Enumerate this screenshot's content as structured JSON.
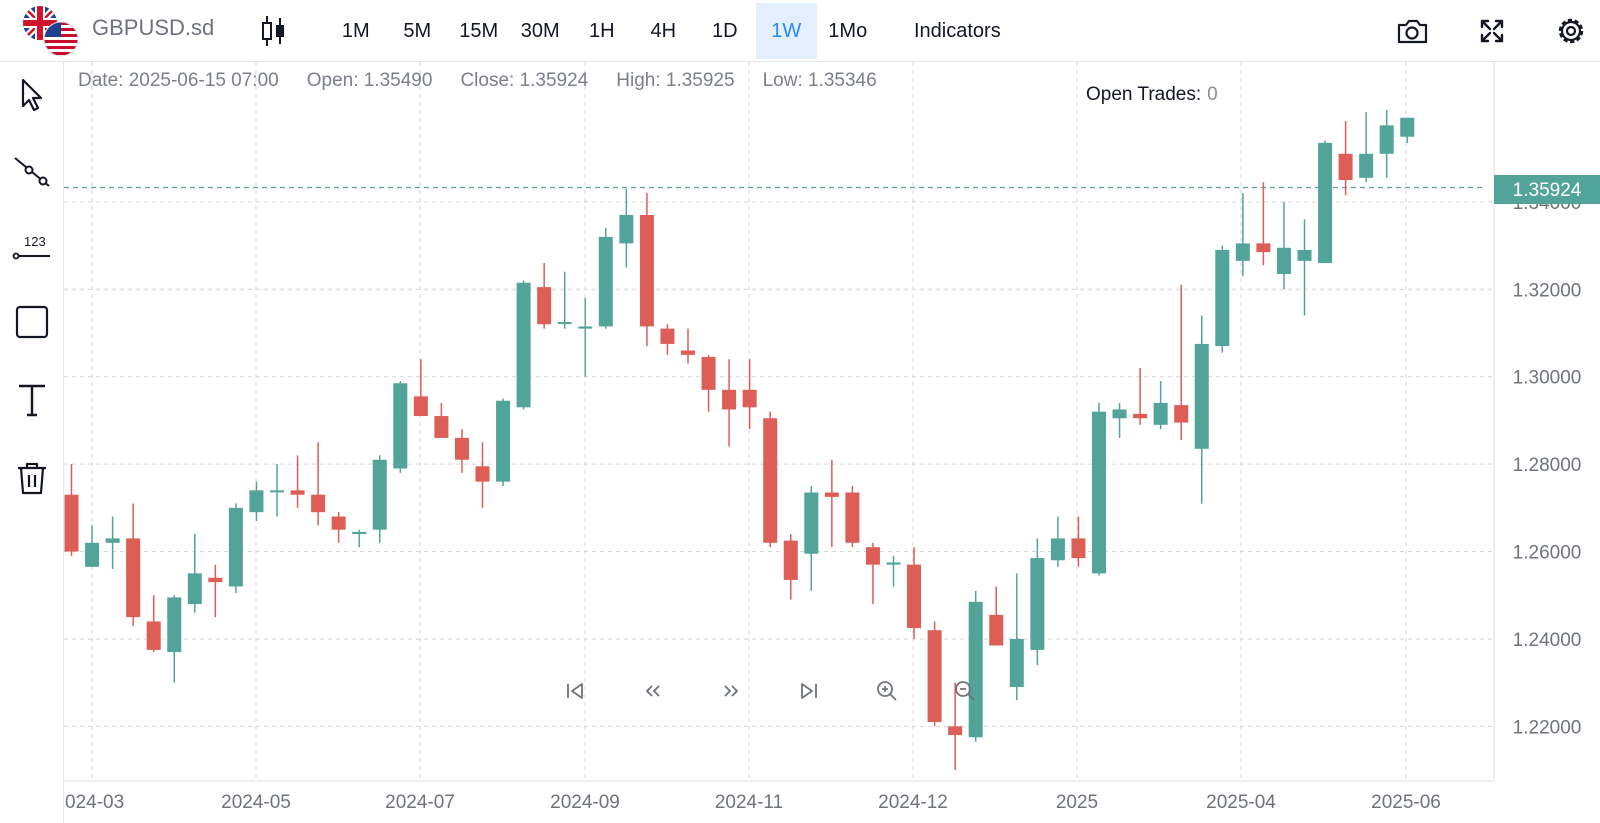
{
  "header": {
    "symbol": "GBPUSD.sd",
    "intervals": [
      "1M",
      "5M",
      "15M",
      "30M",
      "1H",
      "4H",
      "1D",
      "1W",
      "1Mo"
    ],
    "active_interval": "1W",
    "indicators_label": "Indicators",
    "icons": [
      "flag-gb-icon",
      "flag-us-icon",
      "candlestick-type-icon",
      "camera-icon",
      "fullscreen-icon",
      "settings-gear-icon"
    ]
  },
  "left_toolbar": {
    "tools": [
      "cursor-arrow-icon",
      "trend-line-icon",
      "price-label-icon",
      "rectangle-icon",
      "text-icon",
      "trash-icon"
    ]
  },
  "legend": {
    "date": "Date: 2025-06-15 07:00",
    "open": "Open: 1.35490",
    "close": "Close: 1.35924",
    "high": "High: 1.35925",
    "low": "Low: 1.35346"
  },
  "open_trades": {
    "label": "Open Trades:",
    "value": "0"
  },
  "navigation": [
    "first-page-icon",
    "scroll-left-icon",
    "scroll-right-icon",
    "last-page-icon",
    "zoom-in-icon",
    "zoom-out-icon"
  ],
  "colors": {
    "up": "#52a49a",
    "down": "#dd5e56",
    "grid": "#d6d6d6",
    "price_line": "#52a49a"
  },
  "chart_data": {
    "type": "candlestick",
    "interval": "1W",
    "x_tick_labels": [
      "024-03",
      "2024-05",
      "2024-07",
      "2024-09",
      "2024-11",
      "2024-12",
      "2025",
      "2025-04",
      "2025-06"
    ],
    "y_tick_labels": [
      "1.34000",
      "1.32000",
      "1.30000",
      "1.28000",
      "1.26000",
      "1.24000",
      "1.22000"
    ],
    "ylim": [
      1.2075,
      1.372
    ],
    "last_price": "1.35924",
    "grid": true,
    "candles": [
      [
        1.273,
        1.28,
        1.259,
        1.26
      ],
      [
        1.2565,
        1.266,
        1.2565,
        1.262
      ],
      [
        1.262,
        1.268,
        1.256,
        1.263
      ],
      [
        1.263,
        1.271,
        1.243,
        1.245
      ],
      [
        1.244,
        1.25,
        1.237,
        1.2375
      ],
      [
        1.237,
        1.25,
        1.23,
        1.2495
      ],
      [
        1.248,
        1.264,
        1.246,
        1.255
      ],
      [
        1.254,
        1.257,
        1.245,
        1.253
      ],
      [
        1.252,
        1.271,
        1.2505,
        1.27
      ],
      [
        1.269,
        1.276,
        1.267,
        1.274
      ],
      [
        1.274,
        1.28,
        1.268,
        1.274
      ],
      [
        1.274,
        1.282,
        1.27,
        1.273
      ],
      [
        1.273,
        1.285,
        1.266,
        1.269
      ],
      [
        1.268,
        1.269,
        1.262,
        1.265
      ],
      [
        1.264,
        1.265,
        1.261,
        1.2645
      ],
      [
        1.265,
        1.282,
        1.262,
        1.281
      ],
      [
        1.279,
        1.299,
        1.278,
        1.2985
      ],
      [
        1.2955,
        1.304,
        1.291,
        1.291
      ],
      [
        1.291,
        1.294,
        1.286,
        1.286
      ],
      [
        1.286,
        1.288,
        1.278,
        1.281
      ],
      [
        1.2795,
        1.285,
        1.27,
        1.276
      ],
      [
        1.276,
        1.295,
        1.275,
        1.2945
      ],
      [
        1.293,
        1.322,
        1.2925,
        1.3215
      ],
      [
        1.3205,
        1.326,
        1.311,
        1.312
      ],
      [
        1.3125,
        1.324,
        1.311,
        1.3125
      ],
      [
        1.311,
        1.318,
        1.3,
        1.3115
      ],
      [
        1.3115,
        1.334,
        1.311,
        1.332
      ],
      [
        1.3305,
        1.343,
        1.325,
        1.337
      ],
      [
        1.337,
        1.342,
        1.307,
        1.3115
      ],
      [
        1.311,
        1.312,
        1.305,
        1.3075
      ],
      [
        1.306,
        1.311,
        1.303,
        1.305
      ],
      [
        1.3045,
        1.305,
        1.292,
        1.297
      ],
      [
        1.297,
        1.304,
        1.284,
        1.2925
      ],
      [
        1.297,
        1.304,
        1.288,
        1.293
      ],
      [
        1.2905,
        1.292,
        1.261,
        1.262
      ],
      [
        1.2625,
        1.264,
        1.249,
        1.2535
      ],
      [
        1.2595,
        1.275,
        1.251,
        1.2735
      ],
      [
        1.2735,
        1.281,
        1.261,
        1.2725
      ],
      [
        1.2735,
        1.275,
        1.261,
        1.262
      ],
      [
        1.261,
        1.262,
        1.248,
        1.257
      ],
      [
        1.257,
        1.259,
        1.252,
        1.2575
      ],
      [
        1.257,
        1.261,
        1.24,
        1.2425
      ],
      [
        1.242,
        1.244,
        1.22,
        1.221
      ],
      [
        1.22,
        1.23,
        1.21,
        1.218
      ],
      [
        1.2175,
        1.251,
        1.2165,
        1.2485
      ],
      [
        1.2455,
        1.252,
        1.239,
        1.2385
      ],
      [
        1.229,
        1.255,
        1.226,
        1.24
      ],
      [
        1.2375,
        1.263,
        1.234,
        1.2585
      ],
      [
        1.258,
        1.268,
        1.2565,
        1.263
      ],
      [
        1.263,
        1.268,
        1.2565,
        1.2585
      ],
      [
        1.255,
        1.294,
        1.2545,
        1.292
      ],
      [
        1.2905,
        1.294,
        1.286,
        1.2925
      ],
      [
        1.2915,
        1.302,
        1.289,
        1.2905
      ],
      [
        1.289,
        1.299,
        1.288,
        1.294
      ],
      [
        1.2935,
        1.321,
        1.2855,
        1.2895
      ],
      [
        1.2835,
        1.314,
        1.271,
        1.3075
      ],
      [
        1.307,
        1.33,
        1.3055,
        1.329
      ],
      [
        1.3265,
        1.342,
        1.323,
        1.3305
      ],
      [
        1.3305,
        1.3445,
        1.3255,
        1.3285
      ],
      [
        1.3235,
        1.34,
        1.32,
        1.3295
      ],
      [
        1.3265,
        1.336,
        1.314,
        1.329
      ],
      [
        1.326,
        1.354,
        1.326,
        1.3535
      ],
      [
        1.351,
        1.3585,
        1.3415,
        1.345
      ],
      [
        1.3455,
        1.3605,
        1.3445,
        1.351
      ],
      [
        1.351,
        1.361,
        1.3455,
        1.3575
      ],
      [
        1.3549,
        1.35925,
        1.35346,
        1.35924
      ]
    ]
  }
}
